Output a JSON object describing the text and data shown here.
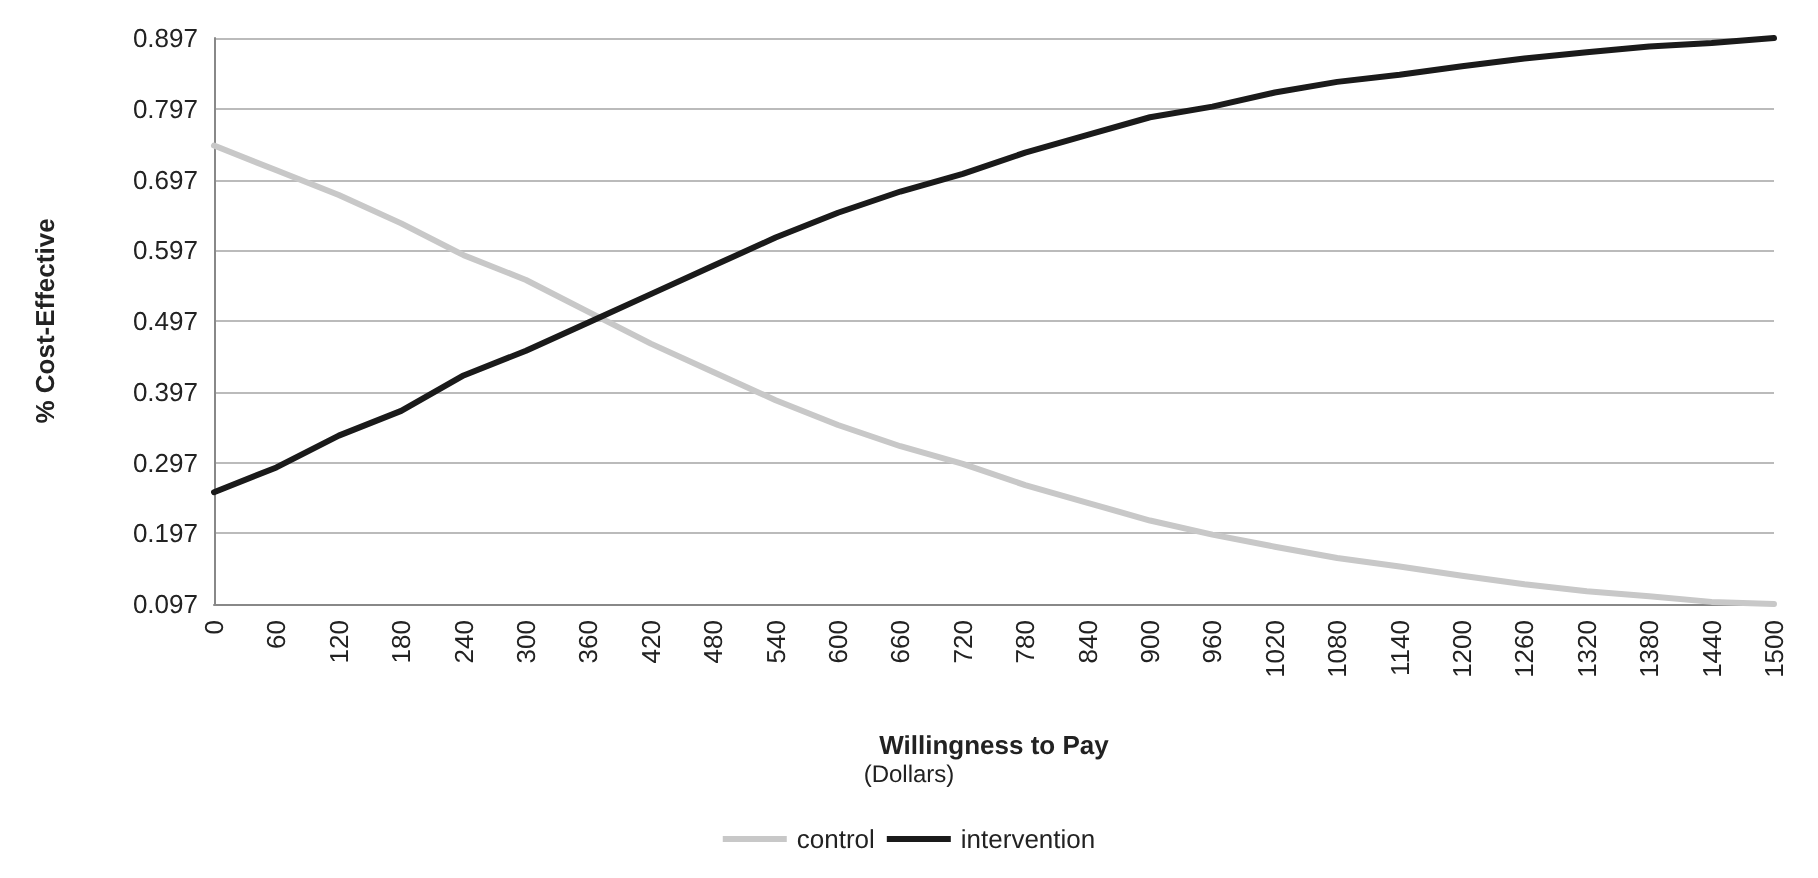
{
  "chart_data": {
    "type": "line",
    "xlabel": "Willingness to Pay",
    "ylabel": "% Cost-Effective",
    "annotations": [
      "(Dollars)"
    ],
    "categories": [
      "0",
      "60",
      "120",
      "180",
      "240",
      "300",
      "360",
      "420",
      "480",
      "540",
      "600",
      "660",
      "720",
      "780",
      "840",
      "900",
      "960",
      "1020",
      "1080",
      "1140",
      "1200",
      "1260",
      "1320",
      "1380",
      "1440",
      "1500"
    ],
    "series": [
      {
        "name": "control",
        "color": "#c8c8c8",
        "values": [
          0.745,
          0.71,
          0.675,
          0.635,
          0.59,
          0.555,
          0.51,
          0.465,
          0.425,
          0.385,
          0.35,
          0.32,
          0.295,
          0.265,
          0.24,
          0.215,
          0.195,
          0.178,
          0.162,
          0.15,
          0.137,
          0.125,
          0.115,
          0.108,
          0.1,
          0.097
        ]
      },
      {
        "name": "intervention",
        "color": "#1a1a1a",
        "values": [
          0.255,
          0.29,
          0.335,
          0.37,
          0.42,
          0.455,
          0.495,
          0.535,
          0.575,
          0.615,
          0.65,
          0.68,
          0.705,
          0.735,
          0.76,
          0.785,
          0.8,
          0.82,
          0.835,
          0.845,
          0.857,
          0.868,
          0.877,
          0.885,
          0.89,
          0.897
        ]
      }
    ],
    "ylim": [
      0.097,
      0.897
    ],
    "yticks": [
      0.097,
      0.197,
      0.297,
      0.397,
      0.497,
      0.597,
      0.697,
      0.797,
      0.897
    ],
    "grid": "y",
    "legend": "bottom",
    "marker": "none"
  }
}
